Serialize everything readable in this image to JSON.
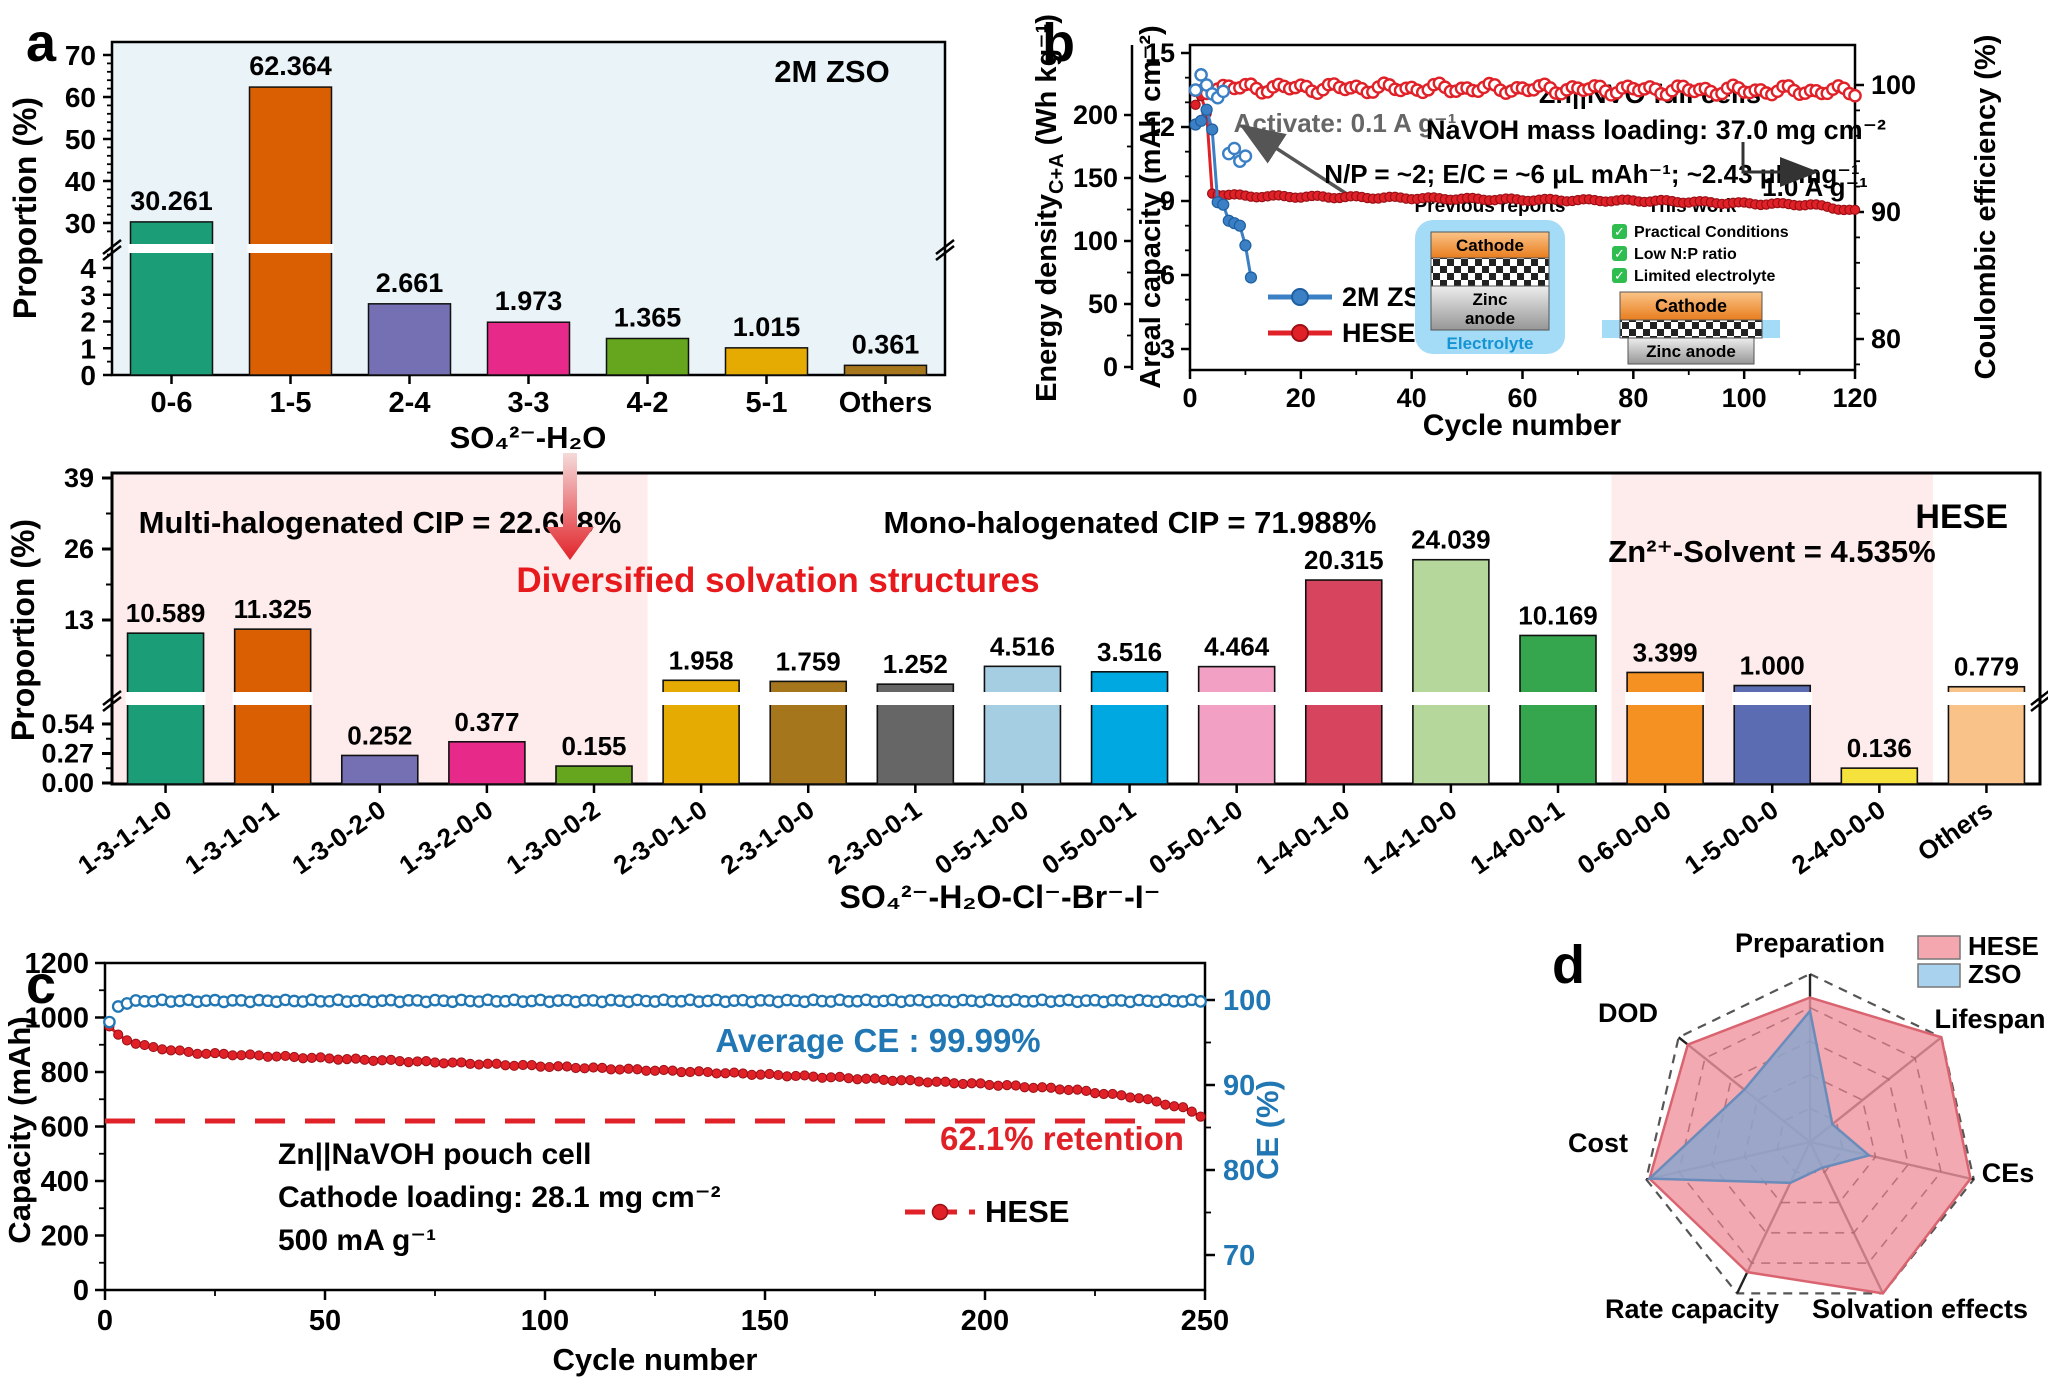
{
  "figure": {
    "panels": {
      "a": "a",
      "b": "b",
      "c": "c",
      "d": "d"
    }
  },
  "chart_data": [
    {
      "panel": "a",
      "type": "bar",
      "title": "2M ZSO",
      "ylabel": "Proportion (%)",
      "xlabel": "SO₄²⁻-H₂O",
      "categories": [
        "0-6",
        "1-5",
        "2-4",
        "3-3",
        "4-2",
        "5-1",
        "Others"
      ],
      "values": [
        30.261,
        62.364,
        2.661,
        1.973,
        1.365,
        1.015,
        0.361
      ],
      "labels": [
        "30.261",
        "62.364",
        "2.661",
        "1.973",
        "1.365",
        "1.015",
        "0.361"
      ],
      "colors": [
        "#1b9e77",
        "#d95f02",
        "#7570b3",
        "#e7298a",
        "#66a61e",
        "#e6ab02",
        "#a6761d"
      ],
      "upper_ticks": [
        30,
        40,
        50,
        60,
        70
      ],
      "lower_ticks": [
        0,
        1,
        2,
        3,
        4
      ],
      "plot_bg": "#e9f3f8",
      "axis_break": true
    },
    {
      "panel": "b",
      "type": "scatter-line",
      "xlabel": "Cycle number",
      "xticks": [
        0,
        20,
        40,
        60,
        80,
        100,
        120
      ],
      "y_left_energy": {
        "label_pre": "Energy density",
        "label_sub": "C+A",
        "label_post": " (Wh kg⁻¹)",
        "ticks": [
          0,
          50,
          100,
          150,
          200
        ]
      },
      "y_left_areal": {
        "label": "Areal capacity (mAh cm⁻²)",
        "ticks": [
          3,
          6,
          9,
          12,
          15
        ]
      },
      "y_right": {
        "label": "Coulombic efficiency (%)",
        "ticks": [
          80,
          90,
          100
        ]
      },
      "annotations": {
        "activate": "Activate: 0.1 A g⁻¹",
        "cell": "Zn||NVO full cells",
        "loading": "NaVOH mass loading: 37.0 mg cm⁻²",
        "np": "N/P = ~2;  E/C = ~6 μL mAh⁻¹; ~2.43 μL mg⁻¹",
        "rate": "1.0 A g⁻¹"
      },
      "legend": [
        "2M ZSO",
        "HESE"
      ],
      "colors": {
        "zso": "#3b7fc4",
        "zso_dark": "#1d5fa0",
        "hese": "#e02128",
        "hese_dark": "#9b1016"
      },
      "series": {
        "zso_capacity": [
          [
            1,
            12.1
          ],
          [
            2,
            12.25
          ],
          [
            3,
            12.7
          ],
          [
            4,
            11.9
          ],
          [
            5,
            8.95
          ],
          [
            6,
            8.85
          ],
          [
            7,
            8.2
          ],
          [
            8,
            8.1
          ],
          [
            9,
            8.0
          ],
          [
            10,
            7.2
          ],
          [
            11,
            5.9
          ]
        ],
        "hese_capacity_keypoints": [
          [
            1,
            12.9
          ],
          [
            2,
            13.25
          ],
          [
            3,
            12.55
          ],
          [
            4,
            9.3
          ],
          [
            10,
            9.2
          ],
          [
            30,
            9.15
          ],
          [
            60,
            9.05
          ],
          [
            85,
            9.0
          ],
          [
            100,
            8.9
          ],
          [
            112,
            8.85
          ],
          [
            120,
            8.6
          ]
        ],
        "hese_ce_keypoints": [
          [
            1,
            99.2
          ],
          [
            4,
            99.8
          ],
          [
            60,
            99.7
          ],
          [
            120,
            99.5
          ]
        ],
        "zso_ce": [
          [
            1,
            99.6
          ],
          [
            2,
            100.8
          ],
          [
            3,
            100.0
          ],
          [
            4,
            99.3
          ],
          [
            5,
            99.0
          ],
          [
            6,
            99.5
          ],
          [
            7,
            94.6
          ],
          [
            8,
            95.0
          ],
          [
            9,
            94.0
          ],
          [
            10,
            94.4
          ]
        ]
      },
      "inset_previous": {
        "title": "Previous reports",
        "cathode": "Cathode",
        "anode_line1": "Zinc",
        "anode_line2": "anode",
        "electrolyte": "Electrolyte"
      },
      "inset_thiswork": {
        "title": "This work",
        "checks": [
          "Practical Conditions",
          "Low N:P ratio",
          "Limited electrolyte"
        ],
        "cathode": "Cathode",
        "anode": "Zinc anode"
      }
    },
    {
      "panel": "hese-solvation",
      "type": "bar",
      "title": "HESE",
      "ylabel": "Proportion (%)",
      "xlabel": "SO₄²⁻-H₂O-Cl⁻-Br⁻-I⁻",
      "categories": [
        "1-3-1-1-0",
        "1-3-1-0-1",
        "1-3-0-2-0",
        "1-3-2-0-0",
        "1-3-0-0-2",
        "2-3-0-1-0",
        "2-3-1-0-0",
        "2-3-0-0-1",
        "0-5-1-0-0",
        "0-5-0-0-1",
        "0-5-0-1-0",
        "1-4-0-1-0",
        "1-4-1-0-0",
        "1-4-0-0-1",
        "0-6-0-0-0",
        "1-5-0-0-0",
        "2-4-0-0-0",
        "Others"
      ],
      "values": [
        10.589,
        11.325,
        0.252,
        0.377,
        0.155,
        1.958,
        1.759,
        1.252,
        4.516,
        3.516,
        4.464,
        20.315,
        24.039,
        10.169,
        3.399,
        1.0,
        0.136,
        0.779
      ],
      "labels": [
        "10.589",
        "11.325",
        "0.252",
        "0.377",
        "0.155",
        "1.958",
        "1.759",
        "1.252",
        "4.516",
        "3.516",
        "4.464",
        "20.315",
        "24.039",
        "10.169",
        "3.399",
        "1.000",
        "0.136",
        "0.779"
      ],
      "colors": [
        "#1b9e77",
        "#d95f02",
        "#7570b3",
        "#e7298a",
        "#66a61e",
        "#e6ab02",
        "#a6761d",
        "#666666",
        "#a6cee3",
        "#00a8e1",
        "#f2a0c4",
        "#d6455d",
        "#b5d79b",
        "#35a54e",
        "#f59122",
        "#5c6cb2",
        "#f5e23d",
        "#f8c289"
      ],
      "upper_ticks": [
        13,
        26,
        39
      ],
      "lower_ticks": [
        "0.00",
        "0.27",
        "0.54"
      ],
      "regions": [
        {
          "label": "Multi-halogenated CIP = 22.698%",
          "from_bar": 0,
          "to_bar": 5,
          "shaded": true
        },
        {
          "label": "Mono-halogenated CIP = 71.988%",
          "from_bar": 5,
          "to_bar": 14,
          "shaded": false
        },
        {
          "label": "Zn²⁺-Solvent = 4.535%",
          "from_bar": 14,
          "to_bar": 17,
          "shaded": true
        }
      ],
      "center_text": "Diversified solvation structures",
      "center_text_color": "#e8191c",
      "region_bg": "#fdeceb",
      "axis_break": true
    },
    {
      "panel": "c",
      "type": "scatter-line",
      "xlabel": "Cycle number",
      "ylabel": "Capacity (mAh)",
      "y2label": "CE (%)",
      "xticks": [
        0,
        50,
        100,
        150,
        200,
        250
      ],
      "yticks": [
        0,
        200,
        400,
        600,
        800,
        1000,
        1200
      ],
      "y2ticks": [
        70,
        80,
        90,
        100
      ],
      "texts": {
        "cell": "Zn||NaVOH pouch cell",
        "loading": "Cathode loading: 28.1 mg cm⁻²",
        "rate": "500 mA g⁻¹",
        "avg_ce": "Average CE : 99.99%",
        "retention": "62.1% retention"
      },
      "legend": "HESE",
      "retention_line": 620,
      "capacity_keypoints": [
        [
          1,
          965
        ],
        [
          3,
          935
        ],
        [
          6,
          910
        ],
        [
          10,
          892
        ],
        [
          20,
          870
        ],
        [
          50,
          850
        ],
        [
          80,
          833
        ],
        [
          110,
          815
        ],
        [
          140,
          797
        ],
        [
          170,
          777
        ],
        [
          200,
          755
        ],
        [
          220,
          735
        ],
        [
          235,
          705
        ],
        [
          245,
          668
        ],
        [
          250,
          632
        ]
      ],
      "ce_keypoints": [
        [
          1,
          97.3
        ],
        [
          2,
          98.9
        ],
        [
          4,
          99.6
        ],
        [
          8,
          99.9
        ],
        [
          250,
          99.9
        ]
      ],
      "colors": {
        "capacity": "#e02128",
        "ce": "#2077b4"
      }
    },
    {
      "panel": "d",
      "type": "radar",
      "axes": [
        "Preparation",
        "Lifespan",
        "CEs",
        "Solvation effects",
        "Rate capacity",
        "Cost",
        "DOD"
      ],
      "rings": 5,
      "series": [
        {
          "name": "HESE",
          "values": [
            0.86,
            1.0,
            0.98,
            1.0,
            0.86,
            0.98,
            0.93
          ],
          "fill": "#f0949e",
          "stroke": "#d96470",
          "opacity": 0.8
        },
        {
          "name": "ZSO",
          "values": [
            0.78,
            0.17,
            0.36,
            0.17,
            0.27,
            0.98,
            0.5
          ],
          "fill": "#8ba6cd",
          "stroke": "#6b8cba",
          "opacity": 0.85
        }
      ],
      "legend_fills": {
        "HESE": "#f4a7ae",
        "ZSO": "#a9d2ee"
      }
    }
  ]
}
